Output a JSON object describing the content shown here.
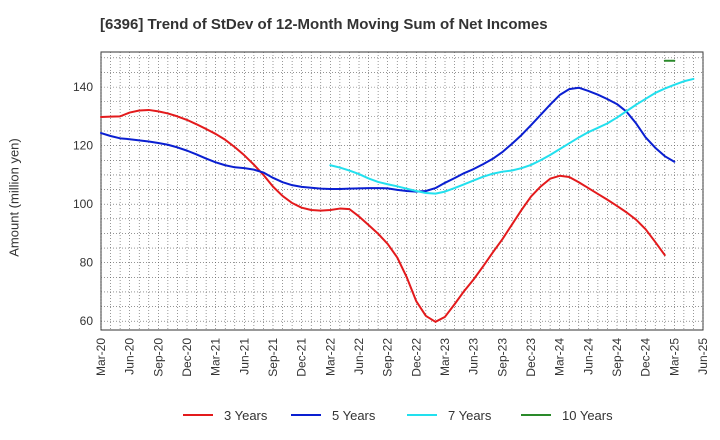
{
  "chart_data": {
    "type": "line",
    "title": "[6396]  Trend of StDev of 12-Month Moving Sum of Net Incomes",
    "xlabel": "",
    "ylabel": "Amount (million yen)",
    "ylim": [
      57,
      152
    ],
    "grid": true,
    "legend_position": "bottom",
    "x_tick_labels": [
      "Mar-20",
      "Jun-20",
      "Sep-20",
      "Dec-20",
      "Mar-21",
      "Jun-21",
      "Sep-21",
      "Dec-21",
      "Mar-22",
      "Jun-22",
      "Sep-22",
      "Dec-22",
      "Mar-23",
      "Jun-23",
      "Sep-23",
      "Dec-23",
      "Mar-24",
      "Jun-24",
      "Sep-24",
      "Dec-24",
      "Mar-25",
      "Jun-25"
    ],
    "y_ticks": [
      60,
      80,
      100,
      120,
      140
    ],
    "series": [
      {
        "name": "3 Years",
        "color": "#e31a1c",
        "start_month_index": 0,
        "values": [
          129.8,
          129.9,
          130.0,
          131.3,
          132.0,
          132.2,
          131.7,
          131.0,
          130.0,
          128.8,
          127.3,
          125.7,
          124.0,
          122.0,
          119.5,
          116.7,
          113.5,
          110.0,
          106.0,
          102.8,
          100.4,
          98.8,
          98.0,
          97.8,
          98.0,
          98.5,
          98.3,
          95.8,
          92.9,
          89.9,
          86.4,
          81.8,
          75.0,
          66.8,
          61.8,
          59.8,
          61.5,
          65.8,
          70.3,
          74.3,
          78.8,
          83.5,
          88.0,
          93.0,
          98.0,
          102.6,
          106.0,
          108.7,
          109.7,
          109.3,
          107.5,
          105.5,
          103.5,
          101.5,
          99.4,
          97.2,
          94.7,
          91.4,
          87.1,
          82.6
        ]
      },
      {
        "name": "5 Years",
        "color": "#0a1fd1",
        "start_month_index": 0,
        "values": [
          124.3,
          123.3,
          122.5,
          122.2,
          121.8,
          121.4,
          120.9,
          120.3,
          119.4,
          118.3,
          117.0,
          115.6,
          114.3,
          113.3,
          112.6,
          112.3,
          111.8,
          110.8,
          109.0,
          107.5,
          106.5,
          105.9,
          105.6,
          105.3,
          105.2,
          105.2,
          105.3,
          105.4,
          105.5,
          105.5,
          105.4,
          104.9,
          104.5,
          104.3,
          104.5,
          105.5,
          107.3,
          108.9,
          110.6,
          112.0,
          113.7,
          115.5,
          117.8,
          120.6,
          123.6,
          127.0,
          130.5,
          134.0,
          137.3,
          139.3,
          139.8,
          138.7,
          137.4,
          135.9,
          134.2,
          131.6,
          127.6,
          122.8,
          119.3,
          116.4,
          114.5
        ]
      },
      {
        "name": "7 Years",
        "color": "#22e0ee",
        "start_month_index": 24,
        "values": [
          113.3,
          112.5,
          111.5,
          110.3,
          108.8,
          107.6,
          106.8,
          106.1,
          105.3,
          104.5,
          103.8,
          103.6,
          104.3,
          105.5,
          106.8,
          108.1,
          109.4,
          110.4,
          111.1,
          111.5,
          112.3,
          113.4,
          115.0,
          116.8,
          118.8,
          120.8,
          122.8,
          124.6,
          126.1,
          127.6,
          129.6,
          131.8,
          134.0,
          136.0,
          138.0,
          139.5,
          140.8,
          142.0,
          142.8
        ]
      },
      {
        "name": "10 Years",
        "color": "#2a8a2a",
        "start_month_index": 59,
        "values": [
          149.0,
          149.0
        ]
      }
    ]
  }
}
